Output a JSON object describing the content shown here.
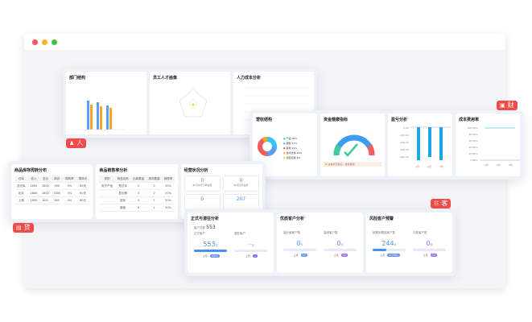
{
  "window": {
    "dots": [
      "#f25a52",
      "#f5b52e",
      "#3fc43f"
    ]
  },
  "people": {
    "tag": "人",
    "cards": [
      {
        "title": "部门结构"
      },
      {
        "title": "员工人才画像"
      },
      {
        "title": "人力成本分析"
      }
    ]
  },
  "finance": {
    "tag": "财",
    "cards": [
      {
        "title": "营收结构",
        "legend": [
          {
            "name": "产品",
            "pct": "30%",
            "color": "#32c5f5"
          },
          {
            "name": "服务",
            "pct": "17%",
            "color": "#5b9cf5"
          },
          {
            "name": "其他",
            "pct": "21%",
            "color": "#f05b5b"
          },
          {
            "name": "技术支持",
            "pct": "24%",
            "color": "#f5a623"
          },
          {
            "name": "项目实施",
            "pct": "8%",
            "color": "#f7c640"
          }
        ]
      },
      {
        "title": "资金健康指标",
        "note": "资金状况良好，继续保持"
      },
      {
        "title": "盈亏分析",
        "yticks": [
          "0.00",
          "-100.00",
          "-200.00",
          "-300.00",
          "-400.00"
        ],
        "xticks": [
          "1月",
          "2月",
          "3月"
        ]
      },
      {
        "title": "成本费用率",
        "yticks": [
          "100.00%",
          "80.00%",
          "60.00%",
          "40.00%",
          "20.00%",
          "0.00%"
        ],
        "xticks": [
          "1月",
          "2月",
          "3月"
        ]
      }
    ]
  },
  "goods": {
    "tag": "货",
    "cards": [
      {
        "title": "商品库存周转分布",
        "head": [
          "仓库",
          "收入",
          "支出",
          "库存",
          "周转率",
          "周转天"
        ],
        "rows": [
          [
            "总仓库",
            "1800",
            "1800",
            "900",
            "0%",
            "60天"
          ],
          [
            "北京",
            "1800",
            "1800",
            "1800",
            "0%",
            "60天"
          ],
          [
            "上海",
            "1800",
            "800",
            "800",
            "0%",
            "60天"
          ]
        ]
      },
      {
        "title": "商品销售率分析",
        "head": [
          "类别",
          "商品名称",
          "出库数量",
          "库存数量",
          "销售率"
        ],
        "rows": [
          [
            "电子产品",
            "笔记本",
            "5",
            "2",
            "30%"
          ],
          [
            "",
            "显示器",
            "3",
            "2",
            "30%"
          ],
          [
            "",
            "鼠标",
            "4",
            "1",
            "30%"
          ],
          [
            "",
            "键盘",
            "6",
            "1",
            "30%"
          ]
        ]
      },
      {
        "title": "经营状况分析",
        "boxes": [
          {
            "value": "0",
            "label": "本月新增订单金额"
          },
          {
            "value": "0",
            "label": "本月回款金额"
          },
          {
            "value": "0",
            "label": ""
          },
          {
            "value": "207",
            "label": ""
          }
        ]
      }
    ]
  },
  "customers": {
    "tag": "客",
    "cards": [
      {
        "title": "正式与潜在分析",
        "total_label": "客户总数",
        "total": "553",
        "left": {
          "label": "正式客户",
          "value": "553",
          "unit": "家",
          "cmp": "上月",
          "pill": "100%",
          "fill": 1
        },
        "right": {
          "label": "潜在客户",
          "value": "--",
          "unit": "家",
          "cmp": "上月",
          "pill": "--",
          "fill": 0
        }
      },
      {
        "title": "优质客户分析",
        "left": {
          "label": "高价值客户数",
          "value": "0",
          "unit": "家",
          "cmp": "上月",
          "pill": "0%",
          "fill": 0
        },
        "right": {
          "label": "高频客户数",
          "value": "0",
          "unit": "家",
          "cmp": "上月",
          "pill": "0%",
          "fill": 0
        }
      },
      {
        "title": "风险客户预警",
        "left": {
          "label": "超期未跟进客户数",
          "value": "244",
          "unit": "家",
          "cmp": "上月",
          "pill": "41.35%",
          "fill": 0.41
        },
        "right": {
          "label": "欠款客户数",
          "value": "0",
          "unit": "家",
          "cmp": "上月",
          "pill": "0%",
          "fill": 0
        }
      }
    ]
  }
}
